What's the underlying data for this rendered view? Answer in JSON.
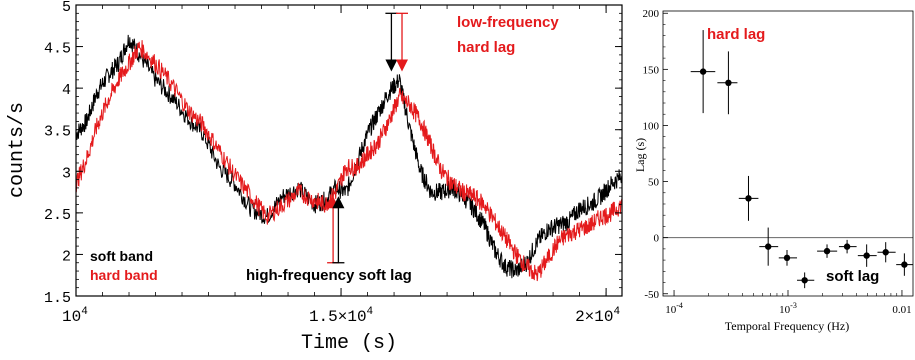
{
  "colors": {
    "soft": "#000000",
    "hard": "#e41a1c",
    "annotation_red": "#e41a1c"
  },
  "chart_data": [
    {
      "type": "line",
      "title": "",
      "xlabel": "Time (s)",
      "ylabel": "counts/s",
      "xlim": [
        10000,
        20300
      ],
      "ylim": [
        1.5,
        5
      ],
      "x_ticks": [
        {
          "value": 10000,
          "base": "10",
          "exp": "4"
        },
        {
          "value": 15000,
          "base": "1.5×10",
          "exp": "4"
        },
        {
          "value": 20000,
          "base": "2×10",
          "exp": "4"
        }
      ],
      "y_ticks": [
        {
          "value": 1.5,
          "label": "1.5"
        },
        {
          "value": 2,
          "label": "2"
        },
        {
          "value": 2.5,
          "label": "2.5"
        },
        {
          "value": 3,
          "label": "3"
        },
        {
          "value": 3.5,
          "label": "3.5"
        },
        {
          "value": 4,
          "label": "4"
        },
        {
          "value": 4.5,
          "label": "4.5"
        },
        {
          "value": 5,
          "label": "5"
        }
      ],
      "series": [
        {
          "name": "soft band",
          "color": "#000000",
          "x": [
            10000,
            10200,
            10400,
            10600,
            10800,
            11000,
            11200,
            11500,
            11800,
            12100,
            12400,
            12700,
            13000,
            13300,
            13600,
            13900,
            14200,
            14500,
            14700,
            14900,
            15100,
            15300,
            15500,
            15700,
            15900,
            16100,
            16300,
            16500,
            16700,
            16900,
            17100,
            17300,
            17500,
            17700,
            17900,
            18100,
            18300,
            18500,
            18700,
            18900,
            19100,
            19300,
            19500,
            19700,
            19900,
            20100,
            20300
          ],
          "y": [
            3.45,
            3.6,
            3.95,
            4.15,
            4.3,
            4.6,
            4.4,
            4.1,
            3.9,
            3.65,
            3.45,
            3.05,
            2.85,
            2.55,
            2.45,
            2.7,
            2.8,
            2.6,
            2.65,
            2.8,
            2.75,
            3.1,
            3.45,
            3.7,
            3.95,
            4.1,
            3.5,
            3.0,
            2.75,
            2.75,
            2.8,
            2.7,
            2.55,
            2.35,
            2.05,
            1.85,
            1.8,
            1.9,
            2.15,
            2.3,
            2.35,
            2.4,
            2.55,
            2.6,
            2.7,
            2.85,
            2.95
          ]
        },
        {
          "name": "hard band",
          "color": "#e41a1c",
          "x": [
            10000,
            10200,
            10400,
            10600,
            10800,
            11000,
            11200,
            11500,
            11800,
            12100,
            12400,
            12700,
            13000,
            13300,
            13600,
            13900,
            14200,
            14500,
            14700,
            14900,
            15100,
            15300,
            15500,
            15700,
            15900,
            16100,
            16300,
            16500,
            16700,
            16900,
            17100,
            17300,
            17500,
            17700,
            17900,
            18100,
            18300,
            18500,
            18700,
            18900,
            19100,
            19300,
            19500,
            19700,
            19900,
            20100,
            20300
          ],
          "y": [
            2.85,
            3.15,
            3.55,
            3.85,
            4.1,
            4.3,
            4.5,
            4.3,
            4.05,
            3.75,
            3.55,
            3.25,
            2.95,
            2.7,
            2.45,
            2.6,
            2.75,
            2.65,
            2.6,
            2.75,
            3.05,
            3.05,
            3.2,
            3.35,
            3.6,
            3.9,
            3.8,
            3.6,
            3.3,
            3.0,
            2.85,
            2.75,
            2.7,
            2.6,
            2.4,
            2.2,
            2.0,
            1.85,
            1.75,
            1.95,
            2.15,
            2.25,
            2.3,
            2.35,
            2.45,
            2.5,
            2.6
          ]
        }
      ],
      "legend": {
        "placement": "bottom-left",
        "items": [
          "soft band",
          "hard band"
        ]
      },
      "annotations": {
        "low_frequency": "low-frequency\nhard lag",
        "high_frequency": "high-frequency soft lag"
      },
      "arrows": [
        {
          "x": 14850,
          "y_from": 1.9,
          "y_to": 2.7,
          "direction": "up",
          "color": "#e41a1c"
        },
        {
          "x": 14950,
          "y_from": 1.9,
          "y_to": 2.7,
          "direction": "up",
          "color": "#000000"
        },
        {
          "x": 15950,
          "y_from": 4.9,
          "y_to": 4.2,
          "direction": "down",
          "color": "#000000"
        },
        {
          "x": 16150,
          "y_from": 4.9,
          "y_to": 4.2,
          "direction": "down",
          "color": "#e41a1c"
        }
      ],
      "grid": false
    },
    {
      "type": "scatter",
      "title": "",
      "xlabel": "Temporal Frequency (Hz)",
      "ylabel": "Lag (s)",
      "x_scale": "log",
      "xlim": [
        8e-05,
        0.0125
      ],
      "ylim": [
        -52,
        202
      ],
      "x_ticks": [
        {
          "value": 0.0001,
          "base": "10",
          "exp": "-4"
        },
        {
          "value": 0.001,
          "base": "10",
          "exp": "-3"
        },
        {
          "value": 0.01,
          "base": "0.01",
          "exp": ""
        }
      ],
      "y_ticks": [
        {
          "value": -50,
          "label": "-50"
        },
        {
          "value": 0,
          "label": "0"
        },
        {
          "value": 50,
          "label": "50"
        },
        {
          "value": 100,
          "label": "100"
        },
        {
          "value": 150,
          "label": "150"
        },
        {
          "value": 200,
          "label": "200"
        }
      ],
      "reference_line_y": 0,
      "points": [
        {
          "x": 0.00018,
          "y": 148,
          "x_lo": 0.00014,
          "x_hi": 0.00023,
          "y_err": 37
        },
        {
          "x": 0.0003,
          "y": 138,
          "x_lo": 0.00024,
          "x_hi": 0.00036,
          "y_err": 28
        },
        {
          "x": 0.00045,
          "y": 35,
          "x_lo": 0.00037,
          "x_hi": 0.00055,
          "y_err": 20
        },
        {
          "x": 0.00067,
          "y": -8,
          "x_lo": 0.00056,
          "x_hi": 0.00082,
          "y_err": 17
        },
        {
          "x": 0.00098,
          "y": -18,
          "x_lo": 0.00083,
          "x_hi": 0.0012,
          "y_err": 7
        },
        {
          "x": 0.0014,
          "y": -38,
          "x_lo": 0.0012,
          "x_hi": 0.0017,
          "y_err": 7
        },
        {
          "x": 0.0022,
          "y": -12,
          "x_lo": 0.0018,
          "x_hi": 0.0027,
          "y_err": 6
        },
        {
          "x": 0.0033,
          "y": -8,
          "x_lo": 0.0028,
          "x_hi": 0.004,
          "y_err": 6
        },
        {
          "x": 0.0049,
          "y": -16,
          "x_lo": 0.0041,
          "x_hi": 0.006,
          "y_err": 10
        },
        {
          "x": 0.0072,
          "y": -13,
          "x_lo": 0.0061,
          "x_hi": 0.0088,
          "y_err": 9
        },
        {
          "x": 0.0105,
          "y": -24,
          "x_lo": 0.0089,
          "x_hi": 0.0125,
          "y_err": 10
        }
      ],
      "annotations": {
        "hard_lag": "hard lag",
        "soft_lag": "soft lag"
      },
      "grid": false
    }
  ]
}
